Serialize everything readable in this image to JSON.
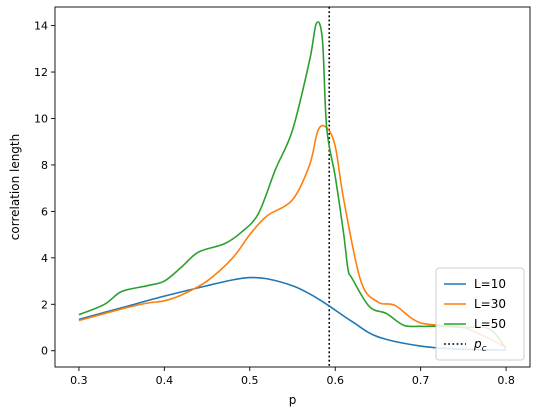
{
  "chart_data": {
    "type": "line",
    "title": "",
    "xlabel": "p",
    "ylabel": "correlation length",
    "xlim": [
      0.272,
      0.828
    ],
    "ylim": [
      -0.7,
      14.8
    ],
    "xticks": [
      0.3,
      0.4,
      0.5,
      0.6,
      0.7,
      0.8
    ],
    "xtick_labels": [
      "0.3",
      "0.4",
      "0.5",
      "0.6",
      "0.7",
      "0.8"
    ],
    "yticks": [
      0,
      2,
      4,
      6,
      8,
      10,
      12,
      14
    ],
    "ytick_labels": [
      "0",
      "2",
      "4",
      "6",
      "8",
      "10",
      "12",
      "14"
    ],
    "grid": false,
    "legend_position": "lower-right",
    "vline": {
      "x": 0.593,
      "style": "dotted",
      "color": "#000000",
      "label": "p",
      "label_sub": "c"
    },
    "series": [
      {
        "name": "L=10",
        "color": "#1f77b4",
        "x": [
          0.3,
          0.35,
          0.4,
          0.45,
          0.48,
          0.5,
          0.52,
          0.55,
          0.57,
          0.59,
          0.62,
          0.65,
          0.7,
          0.75,
          0.8
        ],
        "y": [
          1.35,
          1.85,
          2.35,
          2.8,
          3.05,
          3.15,
          3.1,
          2.8,
          2.45,
          2.0,
          1.25,
          0.6,
          0.2,
          0.06,
          0.03
        ]
      },
      {
        "name": "L=30",
        "color": "#ff7f0e",
        "x": [
          0.3,
          0.35,
          0.38,
          0.4,
          0.42,
          0.45,
          0.48,
          0.5,
          0.52,
          0.55,
          0.57,
          0.58,
          0.59,
          0.6,
          0.61,
          0.63,
          0.65,
          0.67,
          0.7,
          0.75,
          0.8
        ],
        "y": [
          1.3,
          1.8,
          2.05,
          2.15,
          2.4,
          3.0,
          4.0,
          5.0,
          5.8,
          6.5,
          8.0,
          9.5,
          9.6,
          8.8,
          6.5,
          3.0,
          2.1,
          1.95,
          1.2,
          1.0,
          0.15
        ]
      },
      {
        "name": "L=50",
        "color": "#2ca02c",
        "x": [
          0.3,
          0.33,
          0.35,
          0.38,
          0.4,
          0.42,
          0.44,
          0.47,
          0.49,
          0.51,
          0.53,
          0.55,
          0.57,
          0.578,
          0.585,
          0.59,
          0.6,
          0.61,
          0.615,
          0.62,
          0.64,
          0.66,
          0.68,
          0.7,
          0.72,
          0.75,
          0.78,
          0.8
        ],
        "y": [
          1.55,
          2.0,
          2.55,
          2.8,
          3.0,
          3.6,
          4.25,
          4.6,
          5.1,
          5.9,
          7.8,
          9.5,
          12.5,
          14.1,
          13.4,
          9.6,
          7.5,
          5.0,
          3.5,
          3.1,
          1.9,
          1.6,
          1.1,
          1.05,
          1.05,
          1.0,
          0.95,
          0.1
        ]
      }
    ]
  }
}
